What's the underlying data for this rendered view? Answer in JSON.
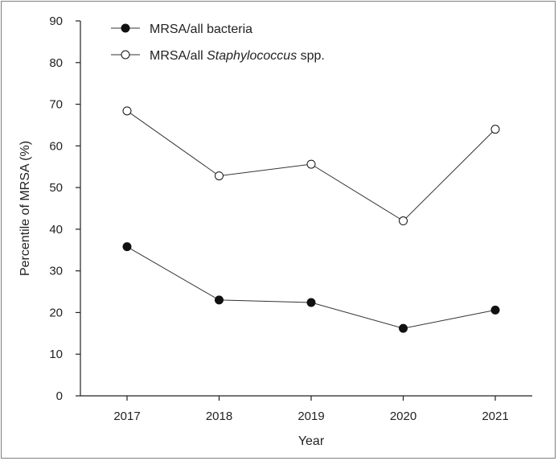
{
  "chart_data": {
    "type": "line",
    "title": "",
    "xlabel": "Year",
    "ylabel": "Percentile of MRSA (%)",
    "categories": [
      "2017",
      "2018",
      "2019",
      "2020",
      "2021"
    ],
    "ylim": [
      0,
      90
    ],
    "yticks": [
      0,
      10,
      20,
      30,
      40,
      50,
      60,
      70,
      80,
      90
    ],
    "grid": false,
    "legend_position": "top-left",
    "series": [
      {
        "name": "MRSA/all bacteria",
        "marker": "filled-circle",
        "values": [
          35.8,
          23.0,
          22.4,
          16.2,
          20.6
        ]
      },
      {
        "name_parts": [
          "MRSA/all ",
          "Staphylococcus",
          " spp."
        ],
        "marker": "open-circle",
        "values": [
          68.4,
          52.8,
          55.6,
          42.0,
          64.0
        ]
      }
    ],
    "colors": {
      "line": "#333333",
      "marker_filled": "#111111",
      "marker_open_fill": "#ffffff",
      "axis": "#222222"
    }
  }
}
